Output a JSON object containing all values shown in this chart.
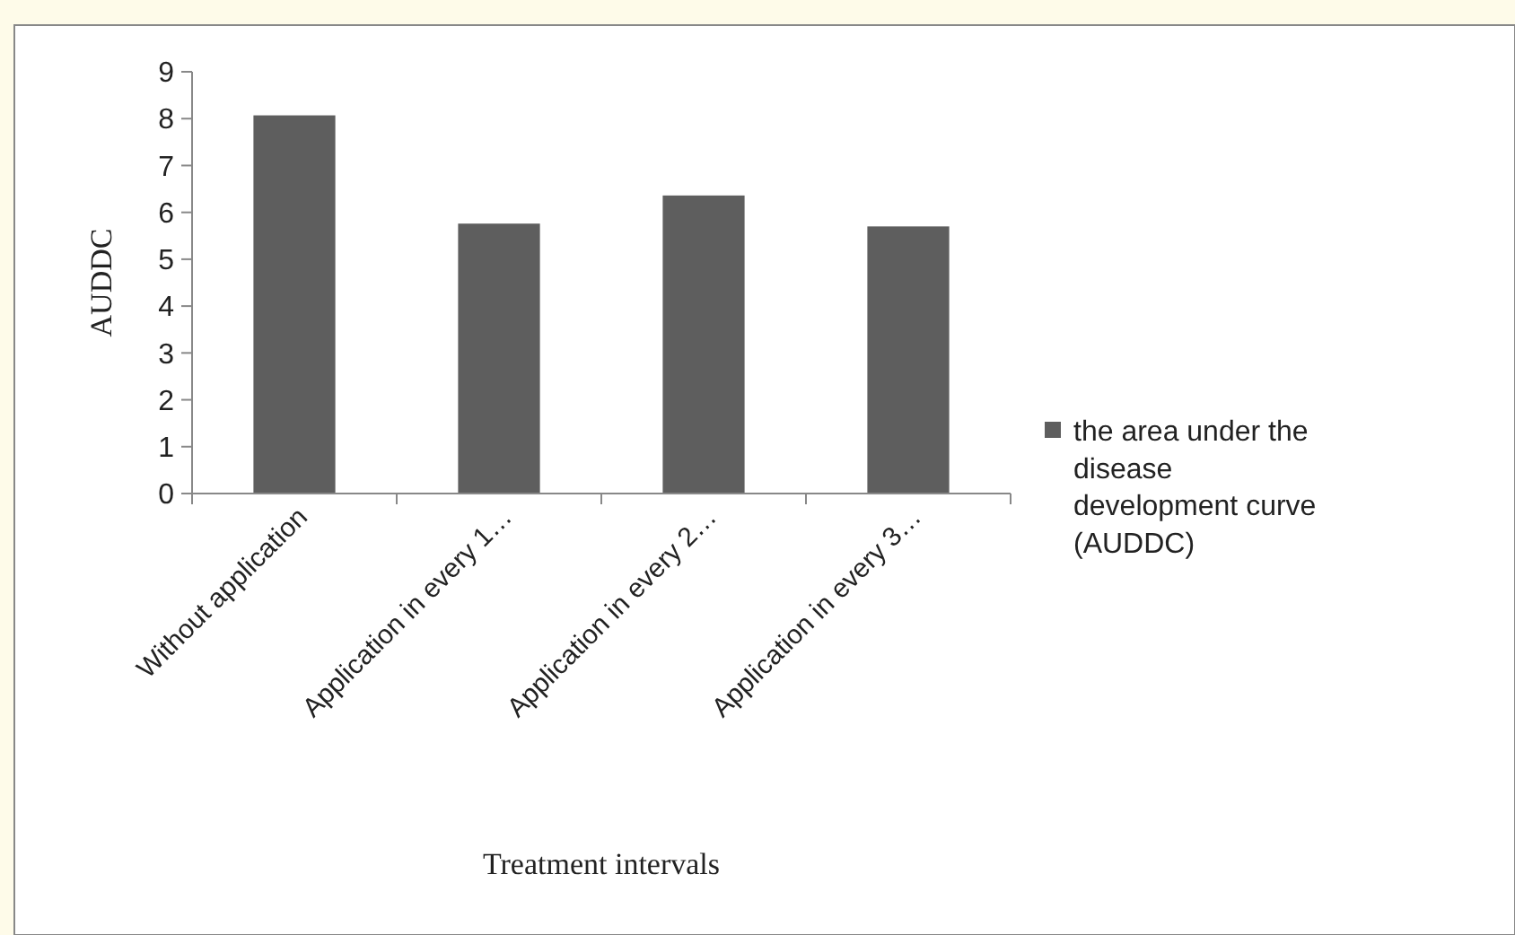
{
  "chart_data": {
    "type": "bar",
    "xlabel": "Treatment intervals",
    "ylabel": "AUDDC",
    "categories": [
      "Without application",
      "Application in every 1…",
      "Application in every 2…",
      "Application in every 3…"
    ],
    "series": [
      {
        "name": "the area under the disease development curve (AUDDC)",
        "color": "#5e5e5e",
        "values": [
          8.07,
          5.76,
          6.36,
          5.7
        ]
      }
    ],
    "ylim": [
      0,
      9
    ],
    "yticks": [
      0,
      1,
      2,
      3,
      4,
      5,
      6,
      7,
      8,
      9
    ],
    "grid": false,
    "legend": "right"
  }
}
